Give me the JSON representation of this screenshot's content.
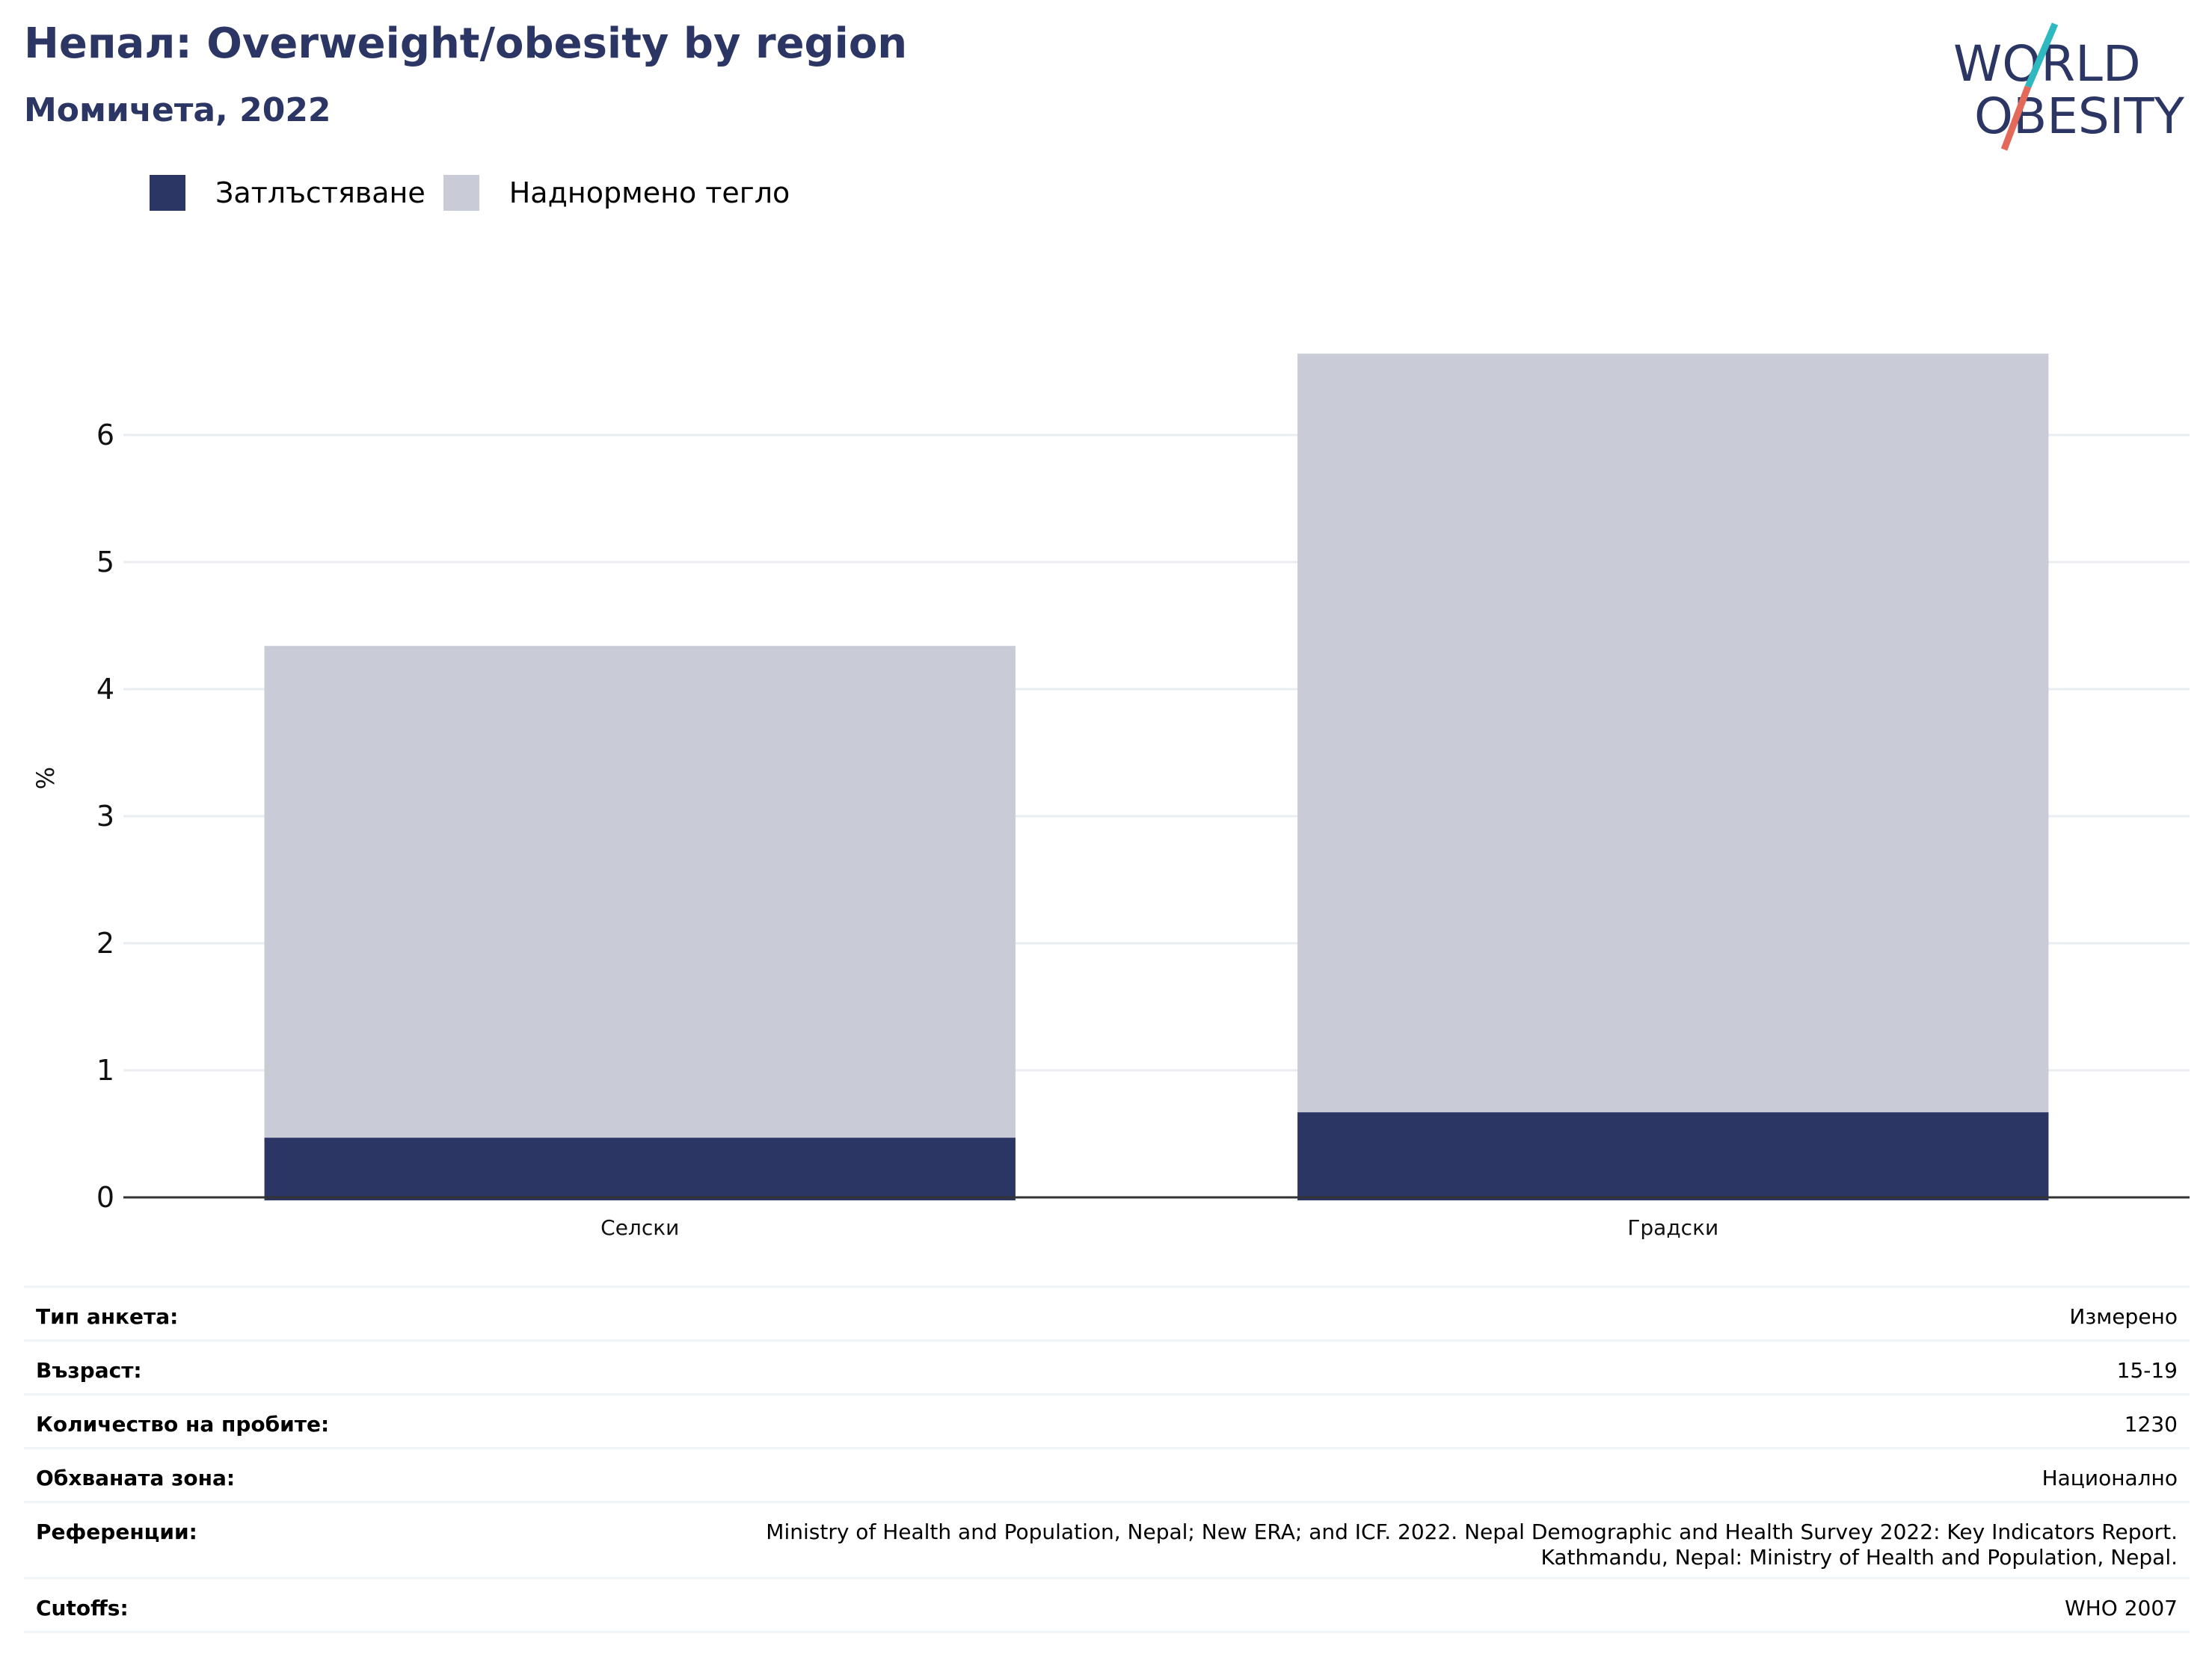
{
  "header": {
    "title": "Непал: Overweight/obesity by region",
    "subtitle": "Момичета, 2022"
  },
  "logo": {
    "line1": "WORLD",
    "line2": "OBESITY",
    "colors": {
      "text": "#2b3664",
      "slash_top": "#2eb8c0",
      "slash_bottom": "#e36a5a"
    }
  },
  "colors": {
    "obesity": "#2b3664",
    "overweight": "#c9cbd7",
    "grid": "#e9ecf1",
    "axis": "#333333"
  },
  "chart_data": {
    "type": "bar",
    "stacked": true,
    "categories": [
      "Селски",
      "Градски"
    ],
    "series": [
      {
        "name": "Затлъстяване",
        "values": [
          0.47,
          0.67
        ]
      },
      {
        "name": "Наднормено тегло",
        "values": [
          3.87,
          5.97
        ]
      }
    ],
    "ylabel": "%",
    "ylim": [
      0,
      6.6
    ],
    "yticks": [
      0,
      1,
      2,
      3,
      4,
      5,
      6
    ],
    "grid": true,
    "legend_position": "top-left"
  },
  "info": {
    "rows": [
      {
        "label": "Тип анкета:",
        "value": "Измерено"
      },
      {
        "label": "Възраст:",
        "value": "15-19"
      },
      {
        "label": "Количество на пробите:",
        "value": "1230"
      },
      {
        "label": "Обхваната зона:",
        "value": "Национално"
      },
      {
        "label": "Референции:",
        "value_lines": [
          "Ministry of Health and Population, Nepal; New ERA; and ICF. 2022. Nepal Demographic and Health Survey 2022: Key Indicators Report.",
          "Kathmandu, Nepal: Ministry of Health and Population, Nepal."
        ]
      },
      {
        "label": "Cutoffs:",
        "value": "WHO 2007"
      }
    ]
  }
}
